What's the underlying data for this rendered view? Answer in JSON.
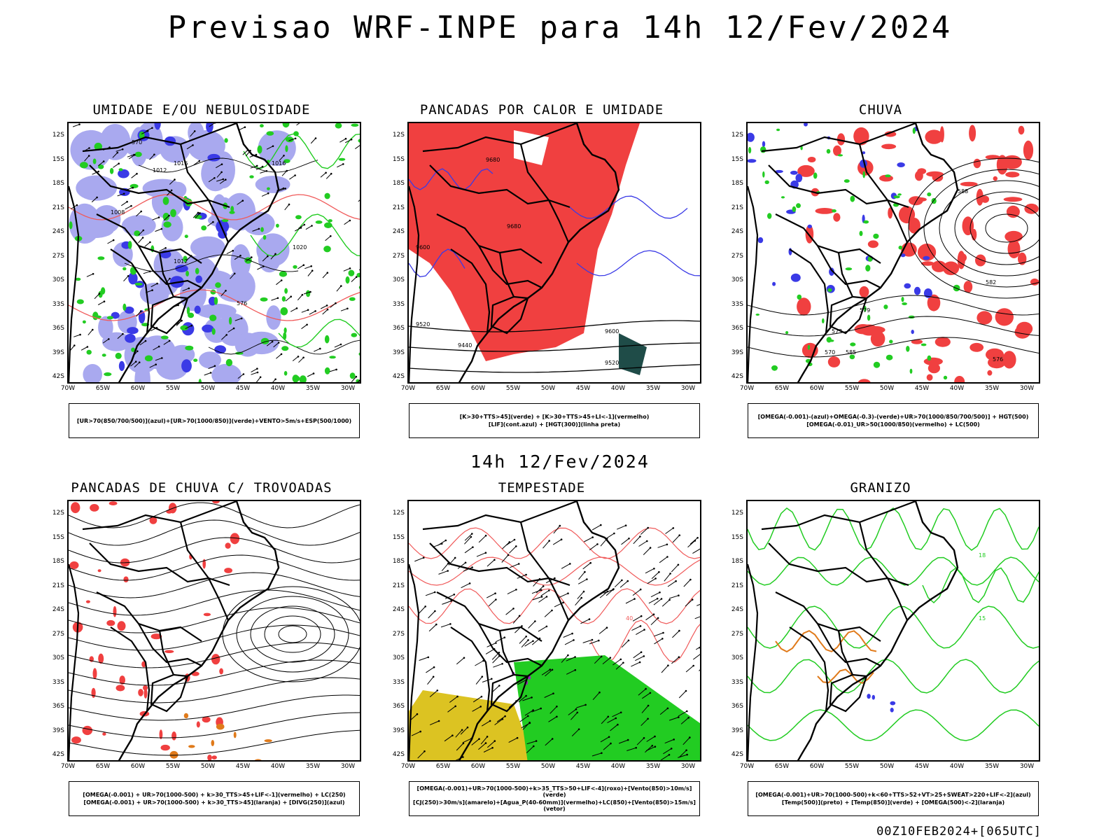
{
  "title": "Previsao WRF-INPE  para 14h 12/Fev/2024",
  "mid_title": "14h 12/Fev/2024",
  "footer": "00Z10FEB2024+[065UTC]",
  "axes": {
    "lat_labels": [
      "12S",
      "15S",
      "18S",
      "21S",
      "24S",
      "27S",
      "30S",
      "33S",
      "36S",
      "39S",
      "42S"
    ],
    "lon_labels": [
      "70W",
      "65W",
      "60W",
      "55W",
      "50W",
      "45W",
      "40W",
      "35W",
      "30W"
    ]
  },
  "colors": {
    "light_blue": "#a9a9ef",
    "blue": "#3a3ae6",
    "green": "#22cc22",
    "red": "#f04040",
    "orange": "#e07a1a",
    "yellow": "#dcc322",
    "purple": "#a020c0",
    "dark_teal": "#1f4c48",
    "black": "#000000"
  },
  "panels": [
    {
      "title": "UMIDADE E/OU NEBULOSIDADE",
      "caption": [
        "[UR>70(850/700/500)](azul)+[UR>70(1000/850)](verde)+VENTO>5m/s+ESP(500/1000)"
      ],
      "contour_labels": [
        "1016",
        "1012",
        "1008",
        "1020",
        "1016",
        "1012",
        "570",
        "576"
      ],
      "icon": "humidity-map-icon"
    },
    {
      "title": "PANCADAS POR CALOR E UMIDADE",
      "caption": [
        "[K>30+TTS>45](verde) + [K>30+TTS>45+LI<-1](vermelho)",
        "[LIF](cont.azul) + [HGT(300)](linha preta)"
      ],
      "contour_labels": [
        "9680",
        "9600",
        "9520",
        "9440",
        "9680",
        "9600",
        "9520"
      ],
      "icon": "heat-showers-map-icon"
    },
    {
      "title": "CHUVA",
      "caption": [
        "[OMEGA(-0.001)-(azul)+OMEGA(-0.3)-(verde)+UR>70(1000/850/700/500)] + HGT(500)",
        "[OMEGA(-0.01)_UR>50(1000/850)(vermelho) + LC(500)"
      ],
      "contour_labels": [
        "588",
        "582",
        "585",
        "576",
        "579",
        "573",
        "570"
      ],
      "icon": "rain-map-icon"
    },
    {
      "title": "PANCADAS DE CHUVA C/ TROVOADAS",
      "caption": [
        "[OMEGA(-0.001) + UR>70(1000-500) + k>30_TTS>45+LIF<-1](vermelho) + LC(250)",
        "[OMEGA(-0.001) + UR>70(1000-500) + k>30_TTS>45](laranja) + [DIVG(250)](azul)"
      ],
      "contour_labels": [],
      "icon": "thunderstorm-showers-map-icon"
    },
    {
      "title": "TEMPESTADE",
      "caption": [
        "[OMEGA(-0.001)+UR>70(1000-500)+k>35_TTS>50+LIF<-4](roxo)+[Vento(850)>10m/s](verde)",
        "[CJ(250)>30m/s](amarelo)+[Agua_P(40-60mm)](vermelho)+LC(850)+[Vento(850)>15m/s](vetor)"
      ],
      "contour_labels": [
        "40"
      ],
      "icon": "storm-map-icon"
    },
    {
      "title": "GRANIZO",
      "caption": [
        "[OMEGA(-0.001)+UR>70(1000-500)+k<60+TTS>52+VT>25+SWEAT>220+LIF<-2](azul)",
        "[Temp(500)](preto) + [Temp(850)](verde) + [OMEGA(500)<-2](laranja)"
      ],
      "contour_labels": [
        "15",
        "18"
      ],
      "icon": "hail-map-icon"
    }
  ]
}
